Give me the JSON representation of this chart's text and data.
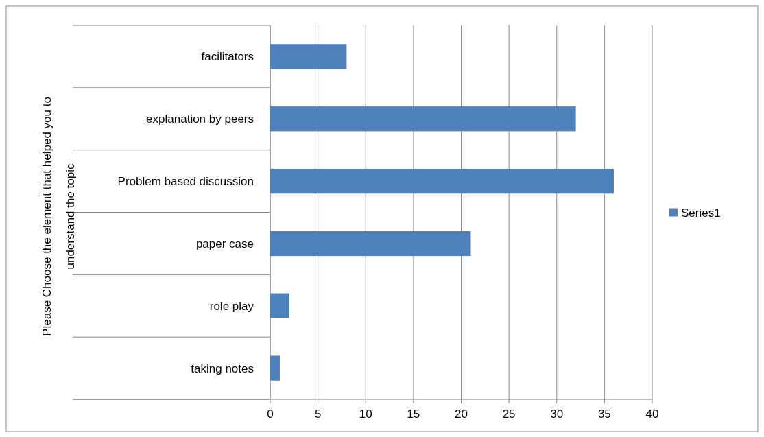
{
  "chart_data": {
    "type": "bar",
    "orientation": "horizontal",
    "ylabel": "Please Choose the element that helped you to understand the topic",
    "categories": [
      "facilitators",
      "explanation by peers",
      "Problem based discussion",
      "paper case",
      "role play",
      "taking notes"
    ],
    "series": [
      {
        "name": "Series1",
        "color": "#4f81bd",
        "values": [
          8,
          32,
          36,
          21,
          2,
          1
        ]
      }
    ],
    "xlim": [
      0,
      40
    ],
    "xticks": [
      0,
      5,
      10,
      15,
      20,
      25,
      30,
      35,
      40
    ],
    "grid": "x",
    "legend": "right"
  }
}
